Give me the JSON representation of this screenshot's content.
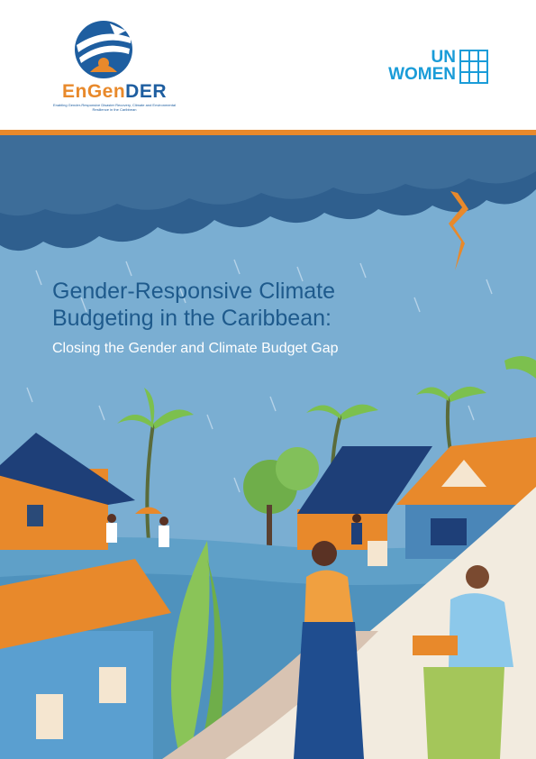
{
  "header": {
    "engender_logo": {
      "wordmark_prefix": "En",
      "wordmark_mid": "Gen",
      "wordmark_suffix": "DER",
      "tagline": "Enabling Gender-Responsive Disaster Recovery, Climate and Environmental Resilience in the Caribbean"
    },
    "partner_logo": {
      "line1": "UN",
      "line2": "WOMEN"
    }
  },
  "cover": {
    "title_line1": "Gender-Responsive Climate",
    "title_line2": "Budgeting in the Caribbean:",
    "subtitle": "Closing the Gender and Climate Budget Gap"
  },
  "colors": {
    "accent_orange": "#e8892b",
    "title_blue": "#1e5a8c",
    "brand_blue": "#1a9cd8",
    "sky": "#7aaed2",
    "storm_cloud": "#2f5f8e"
  },
  "icons": [
    "engender-emblem-icon",
    "un-women-emblem-icon",
    "lightning-icon"
  ]
}
